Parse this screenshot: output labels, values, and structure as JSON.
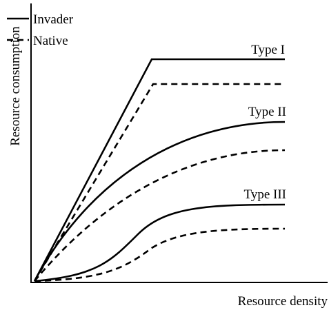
{
  "axes": {
    "y_label": "Resource consumption",
    "x_label": "Resource density"
  },
  "legend": {
    "items": [
      "Invader",
      "Native"
    ]
  },
  "curves": {
    "labels": [
      "Type I",
      "Type II",
      "Type III"
    ]
  }
}
